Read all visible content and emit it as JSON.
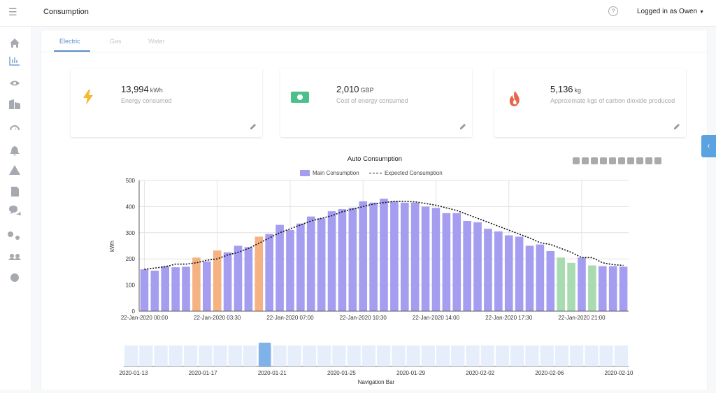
{
  "header": {
    "title": "Consumption",
    "user": "Logged in as Owen"
  },
  "tabs": [
    {
      "label": "Electric",
      "active": true
    },
    {
      "label": "Gas",
      "active": false
    },
    {
      "label": "Water",
      "active": false
    }
  ],
  "stats": [
    {
      "value": "13,994",
      "unit": "kWh",
      "desc": "Energy consumed",
      "icon": "lightning-icon",
      "color": "#f5b82e"
    },
    {
      "value": "2,010",
      "unit": "GBP",
      "desc": "Cost of energy consumed",
      "icon": "money-icon",
      "color": "#4cbf8a"
    },
    {
      "value": "5,136",
      "unit": "kg",
      "desc": "Approximate kgs of carbon dioxide produced",
      "icon": "flame-icon",
      "color": "#e8654a"
    }
  ],
  "sidebar_icons": [
    "home-icon",
    "chart-icon",
    "eye-icon",
    "building-icon",
    "dashboard-icon",
    "bell-icon",
    "warning-icon",
    "document-icon",
    "chat-icon",
    "settings-icon",
    "users-icon",
    "help-icon"
  ],
  "colors": {
    "purple": "#a59df0",
    "orange": "#f5b383",
    "green": "#a8dcb0",
    "accent": "#5b8ec8"
  },
  "chart_data": {
    "type": "bar",
    "title": "Auto Consumption",
    "ylabel": "kWh",
    "ylim": [
      0,
      500
    ],
    "yticks": [
      0,
      100,
      200,
      300,
      400,
      500
    ],
    "xtick_labels": [
      "22-Jan-2020 00:00",
      "22-Jan-2020 03:30",
      "22-Jan-2020 07:00",
      "22-Jan-2020 10:30",
      "22-Jan-2020 14:00",
      "22-Jan-2020 17:30",
      "22-Jan-2020 21:00"
    ],
    "series": [
      {
        "name": "Main Consumption",
        "values": [
          160,
          155,
          172,
          168,
          170,
          205,
          190,
          232,
          225,
          250,
          245,
          285,
          295,
          330,
          310,
          335,
          362,
          355,
          382,
          390,
          395,
          420,
          415,
          430,
          420,
          415,
          415,
          400,
          395,
          375,
          375,
          345,
          340,
          315,
          305,
          290,
          285,
          250,
          255,
          230,
          205,
          185,
          205,
          175,
          172,
          172,
          170
        ],
        "bar_colors": [
          "purple",
          "purple",
          "purple",
          "purple",
          "purple",
          "orange",
          "purple",
          "orange",
          "purple",
          "purple",
          "purple",
          "orange",
          "purple",
          "purple",
          "purple",
          "purple",
          "purple",
          "purple",
          "purple",
          "purple",
          "purple",
          "purple",
          "purple",
          "purple",
          "purple",
          "purple",
          "purple",
          "purple",
          "purple",
          "purple",
          "purple",
          "purple",
          "purple",
          "purple",
          "purple",
          "purple",
          "purple",
          "purple",
          "purple",
          "purple",
          "green",
          "green",
          "purple",
          "green",
          "purple",
          "purple",
          "purple"
        ]
      },
      {
        "name": "Expected Consumption",
        "values": [
          160,
          165,
          170,
          180,
          180,
          185,
          195,
          200,
          215,
          225,
          240,
          260,
          280,
          300,
          315,
          330,
          345,
          355,
          365,
          380,
          390,
          400,
          410,
          415,
          420,
          420,
          418,
          412,
          405,
          395,
          385,
          370,
          355,
          340,
          325,
          310,
          295,
          280,
          262,
          255,
          240,
          225,
          205,
          205,
          185,
          178,
          175
        ]
      }
    ],
    "nav": {
      "label": "Navigation Bar",
      "tick_labels": [
        "2020-01-13",
        "2020-01-17",
        "2020-01-21",
        "2020-01-25",
        "2020-01-29",
        "2020-02-02",
        "2020-02-06",
        "2020-02-10"
      ]
    }
  }
}
